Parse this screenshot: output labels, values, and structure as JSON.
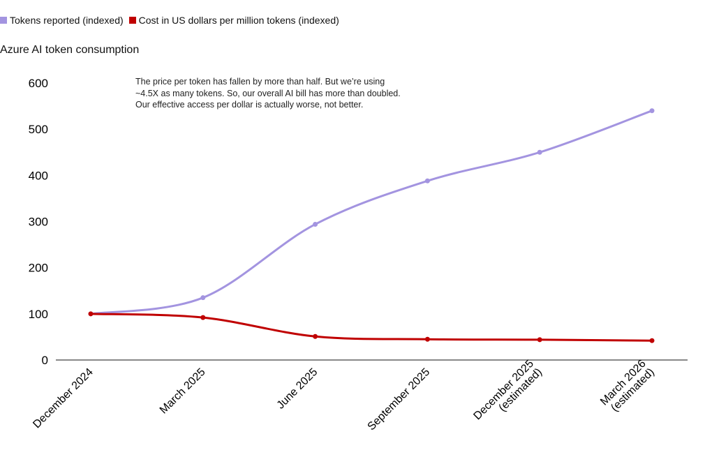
{
  "chart_data": {
    "type": "line",
    "title": "Azure AI token consumption",
    "annotation": "The price per token has fallen by more than half. But we’re using ~4.5X as many tokens. So, our overall AI bill has more than doubled. Our effective access per dollar is actually worse, not better.",
    "categories": [
      "December 2024",
      "March 2025",
      "June 2025",
      "September 2025",
      "December 2025\n(estimated)",
      "March 2026\n(estimated)"
    ],
    "series": [
      {
        "name": "Tokens reported (indexed)",
        "color": "#a394e0",
        "values": [
          100,
          135,
          294,
          388,
          450,
          540
        ]
      },
      {
        "name": "Cost in US dollars per million tokens (indexed)",
        "color": "#c00000",
        "values": [
          100,
          92,
          51,
          45,
          44,
          42
        ]
      }
    ],
    "ylim": [
      0,
      600
    ],
    "yticks": [
      0,
      100,
      200,
      300,
      400,
      500,
      600
    ]
  }
}
